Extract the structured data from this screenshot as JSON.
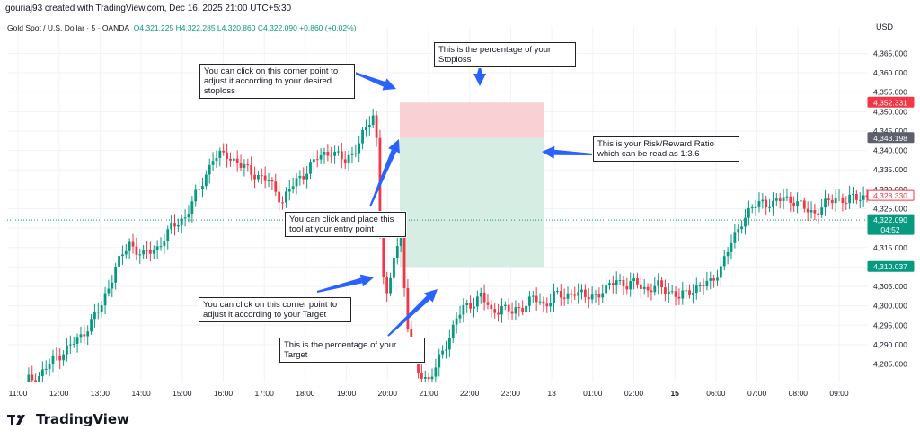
{
  "header": {
    "created_by": "gouriaj93 created with TradingView.com, Dec 16, 2025 21:00 UTC+5:30",
    "symbol": "Gold Spot / U.S. Dollar · 5 · OANDA",
    "open": "O4,321.225",
    "high": "H4,322.285",
    "low": "L4,320.860",
    "close": "C4,322.090",
    "change": "+0.860 (+0.02%)",
    "currency": "USD"
  },
  "chart_data": {
    "type": "candlestick",
    "y_ticks": [
      "4,365.000",
      "4,360.000",
      "4,355.000",
      "4,350.000",
      "4,345.000",
      "4,340.000",
      "4,335.000",
      "4,330.000",
      "4,325.000",
      "4,320.000",
      "4,315.000",
      "4,310.000",
      "4,305.000",
      "4,300.000",
      "4,295.000",
      "4,290.000",
      "4,285.000"
    ],
    "ylim": [
      4280.5,
      4369.5
    ],
    "x_ticks": [
      {
        "label": "11:00",
        "bold": false
      },
      {
        "label": "12:00",
        "bold": false
      },
      {
        "label": "13:00",
        "bold": false
      },
      {
        "label": "14:00",
        "bold": false
      },
      {
        "label": "15:00",
        "bold": false
      },
      {
        "label": "16:00",
        "bold": false
      },
      {
        "label": "17:00",
        "bold": false
      },
      {
        "label": "18:00",
        "bold": false
      },
      {
        "label": "19:00",
        "bold": false
      },
      {
        "label": "20:00",
        "bold": false
      },
      {
        "label": "21:00",
        "bold": false
      },
      {
        "label": "22:00",
        "bold": false
      },
      {
        "label": "23:00",
        "bold": false
      },
      {
        "label": "13",
        "bold": false
      },
      {
        "label": "01:00",
        "bold": false
      },
      {
        "label": "02:00",
        "bold": false
      },
      {
        "label": "15",
        "bold": true
      },
      {
        "label": "06:00",
        "bold": false
      },
      {
        "label": "07:00",
        "bold": false
      },
      {
        "label": "08:00",
        "bold": false
      },
      {
        "label": "09:00",
        "bold": false
      }
    ],
    "price_path": [
      [
        0,
        4280.5
      ],
      [
        4,
        4282
      ],
      [
        8,
        4286
      ],
      [
        12,
        4289
      ],
      [
        16,
        4292
      ],
      [
        22,
        4300
      ],
      [
        26,
        4310
      ],
      [
        30,
        4316
      ],
      [
        34,
        4313
      ],
      [
        38,
        4315
      ],
      [
        42,
        4320
      ],
      [
        46,
        4323
      ],
      [
        50,
        4330
      ],
      [
        54,
        4338
      ],
      [
        58,
        4339
      ],
      [
        62,
        4336
      ],
      [
        66,
        4334
      ],
      [
        70,
        4332
      ],
      [
        74,
        4327
      ],
      [
        76,
        4330
      ],
      [
        80,
        4334
      ],
      [
        84,
        4338
      ],
      [
        88,
        4340
      ],
      [
        92,
        4337
      ],
      [
        96,
        4342
      ],
      [
        100,
        4349
      ],
      [
        101,
        4343
      ],
      [
        102,
        4320
      ],
      [
        103,
        4308
      ],
      [
        104,
        4302
      ],
      [
        105,
        4306
      ],
      [
        106,
        4313
      ],
      [
        107,
        4316
      ],
      [
        108,
        4318
      ],
      [
        109,
        4305
      ],
      [
        110,
        4295
      ],
      [
        111,
        4288
      ],
      [
        113,
        4283
      ],
      [
        116,
        4281
      ],
      [
        118,
        4284
      ],
      [
        121,
        4290
      ],
      [
        124,
        4297
      ],
      [
        126,
        4299
      ],
      [
        129,
        4301
      ],
      [
        131,
        4303
      ],
      [
        134,
        4298
      ],
      [
        137,
        4300
      ],
      [
        140,
        4298
      ],
      [
        143,
        4300
      ],
      [
        146,
        4302
      ],
      [
        149,
        4300
      ],
      [
        152,
        4303
      ],
      [
        155,
        4302
      ],
      [
        158,
        4304
      ],
      [
        161,
        4302
      ],
      [
        164,
        4303
      ],
      [
        167,
        4304
      ],
      [
        170,
        4307
      ],
      [
        173,
        4305
      ],
      [
        176,
        4306
      ],
      [
        179,
        4304
      ],
      [
        182,
        4305
      ],
      [
        185,
        4304
      ],
      [
        188,
        4302
      ],
      [
        191,
        4304
      ],
      [
        194,
        4305
      ],
      [
        197,
        4306
      ],
      [
        200,
        4310
      ],
      [
        203,
        4316
      ],
      [
        206,
        4322
      ],
      [
        209,
        4325
      ],
      [
        212,
        4327
      ],
      [
        215,
        4326
      ],
      [
        218,
        4328
      ],
      [
        221,
        4327
      ],
      [
        224,
        4325
      ],
      [
        227,
        4324
      ],
      [
        230,
        4326
      ],
      [
        233,
        4328
      ],
      [
        236,
        4327
      ],
      [
        239,
        4328
      ],
      [
        242,
        4328.3
      ]
    ],
    "price_labels": [
      {
        "text": "4,352.331",
        "price": 4352.331,
        "kind": "stop"
      },
      {
        "text": "4,343.198",
        "price": 4343.198,
        "kind": "entry"
      },
      {
        "text": "4,328.330",
        "price": 4328.33,
        "kind": "prevclose"
      },
      {
        "text": "4,322.090",
        "sub": "04:52",
        "price": 4322.09,
        "kind": "current"
      },
      {
        "text": "4,310.037",
        "price": 4310.037,
        "kind": "target"
      }
    ],
    "position_tool": {
      "entry": 4343.198,
      "stop": 4352.331,
      "target": 4310.037
    },
    "colors": {
      "up": "#089981",
      "down": "#f23645",
      "stop_zone": "#f7c5c9",
      "target_zone": "#cfeadf",
      "arrow": "#2962ff"
    }
  },
  "annotations": {
    "stop_corner": "You can click on this corner point to adjust it according to your desired stoploss",
    "stop_pct": "This is the percentage of your Stoploss",
    "rr": "This is your Risk/Reward Ratio which can be read as 1:3.6",
    "entry": "You can click and place this tool at your entry point",
    "target_corner": "You can click on this corner point to adjust it according to your Target",
    "target_pct": "This is the percentage of your Target"
  },
  "brand": {
    "name": "TradingView"
  }
}
